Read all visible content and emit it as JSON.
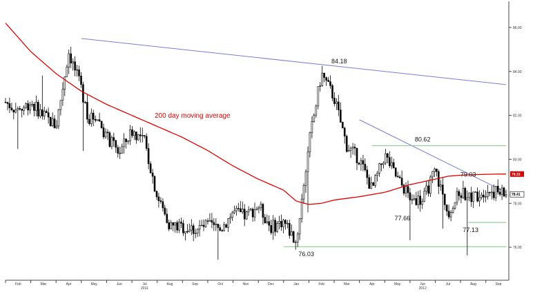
{
  "chart_data": {
    "type": "line",
    "subtype": "candlestick",
    "title": "",
    "xlabel": "",
    "ylabel": "",
    "ylim": [
      74.5,
      87.0
    ],
    "y_ticks": [
      "86.00",
      "84.00",
      "82.00",
      "80.00",
      "78.00",
      "76.00"
    ],
    "x_ticks": [
      "Feb",
      "Mar",
      "Apr",
      "May",
      "Jun",
      "Jul",
      "Aug",
      "Sep",
      "Oct",
      "Nov",
      "Dec",
      "Jan",
      "Feb",
      "Mar",
      "Apr",
      "May",
      "Jun",
      "Jul",
      "Aug",
      "Sep"
    ],
    "year_labels": [
      {
        "label": "2011",
        "month_index": 5
      },
      {
        "label": "2012",
        "month_index": 16
      }
    ],
    "grid": false,
    "legend": "none",
    "colors": {
      "price": "#000000",
      "moving_average": "#e00000",
      "resistance_trendline": "#7a7ad8",
      "support_level": "#7dc87d",
      "value_badge_ma": "#e00000"
    },
    "series": [
      {
        "name": "",
        "kind": "price-close",
        "x": [
          0,
          0.5,
          1,
          1.5,
          2,
          2.5,
          3,
          3.3,
          3.6,
          4,
          4.5,
          5,
          5.5,
          6,
          6.5,
          7,
          7.5,
          8,
          8.5,
          9,
          9.5,
          10,
          10.5,
          11,
          11.5,
          12,
          12.5,
          13,
          13.5,
          14,
          14.5,
          15,
          15.5,
          16,
          16.5,
          17,
          17.5,
          18,
          18.5,
          19,
          19.5,
          19.8
        ],
        "values": [
          82.6,
          82.2,
          82.6,
          82.0,
          81.5,
          84.9,
          83.2,
          81.8,
          82.0,
          81.0,
          80.3,
          81.3,
          80.8,
          78.3,
          77.0,
          76.9,
          76.8,
          77.0,
          76.8,
          77.6,
          77.4,
          77.9,
          76.9,
          77.2,
          76.2,
          80.7,
          83.9,
          82.8,
          80.6,
          80.0,
          78.6,
          80.2,
          79.1,
          78.3,
          78.1,
          79.5,
          77.6,
          78.5,
          78.3,
          78.6,
          78.5,
          78.4
        ]
      },
      {
        "name": "200 day moving average",
        "kind": "moving-average",
        "x": [
          0,
          1,
          2,
          3,
          4,
          5,
          6,
          7,
          8,
          9,
          10,
          11,
          11.5,
          12,
          12.5,
          13,
          14,
          15,
          16,
          17,
          17.5,
          18,
          18.5,
          19,
          19.5,
          19.8
        ],
        "values": [
          86.2,
          84.9,
          83.9,
          83.1,
          82.5,
          82.0,
          81.5,
          81.0,
          80.4,
          79.7,
          79.1,
          78.6,
          78.1,
          77.95,
          78.0,
          78.15,
          78.3,
          78.5,
          78.85,
          79.1,
          79.23,
          79.28,
          79.3,
          79.32,
          79.33,
          79.33
        ]
      },
      {
        "name": "",
        "kind": "trendline",
        "x": [
          3.0,
          19.8
        ],
        "values": [
          85.5,
          83.4
        ]
      },
      {
        "name": "",
        "kind": "trendline",
        "x": [
          14.0,
          19.8
        ],
        "values": [
          81.8,
          78.5
        ]
      },
      {
        "name": "",
        "kind": "support",
        "x": [
          11.0,
          19.8
        ],
        "values": [
          76.03,
          76.03
        ]
      },
      {
        "name": "",
        "kind": "resistance",
        "x": [
          14.5,
          19.8
        ],
        "values": [
          80.62,
          80.62
        ]
      },
      {
        "name": "",
        "kind": "support",
        "x": [
          18.3,
          19.8
        ],
        "values": [
          77.13,
          77.13
        ]
      }
    ],
    "annotations": [
      {
        "text": "84.18",
        "x": 13.2,
        "y": 84.18
      },
      {
        "text": "80.62",
        "x": 16.5,
        "y": 80.62
      },
      {
        "text": "79.03",
        "x": 18.3,
        "y": 79.03
      },
      {
        "text": "77.66",
        "x": 15.7,
        "y": 77.66
      },
      {
        "text": "77.13",
        "x": 18.4,
        "y": 77.13
      },
      {
        "text": "76.03",
        "x": 11.9,
        "y": 76.03
      }
    ],
    "ma_label": "200 day moving average",
    "value_badges": [
      {
        "text": "79.33",
        "value": 79.33,
        "kind": "moving-average"
      },
      {
        "text": "78.41",
        "value": 78.41,
        "kind": "price"
      }
    ]
  }
}
